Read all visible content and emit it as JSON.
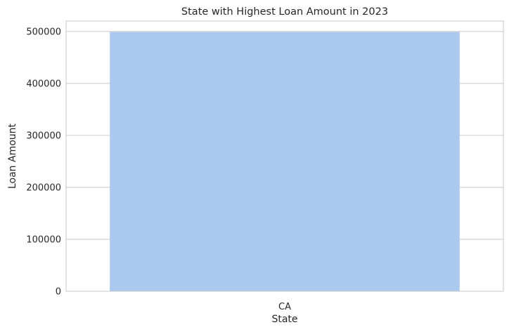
{
  "chart_data": {
    "type": "bar",
    "title": "State with Highest Loan Amount in 2023",
    "xlabel": "State",
    "ylabel": "Loan Amount",
    "categories": [
      "CA"
    ],
    "values": [
      499000
    ],
    "ylim": [
      0,
      520000
    ],
    "yticks": [
      0,
      100000,
      200000,
      300000,
      400000,
      500000
    ],
    "grid": "y",
    "bar_color": "#abc9ee",
    "grid_color": "#cccccc",
    "background": "#ffffff"
  }
}
